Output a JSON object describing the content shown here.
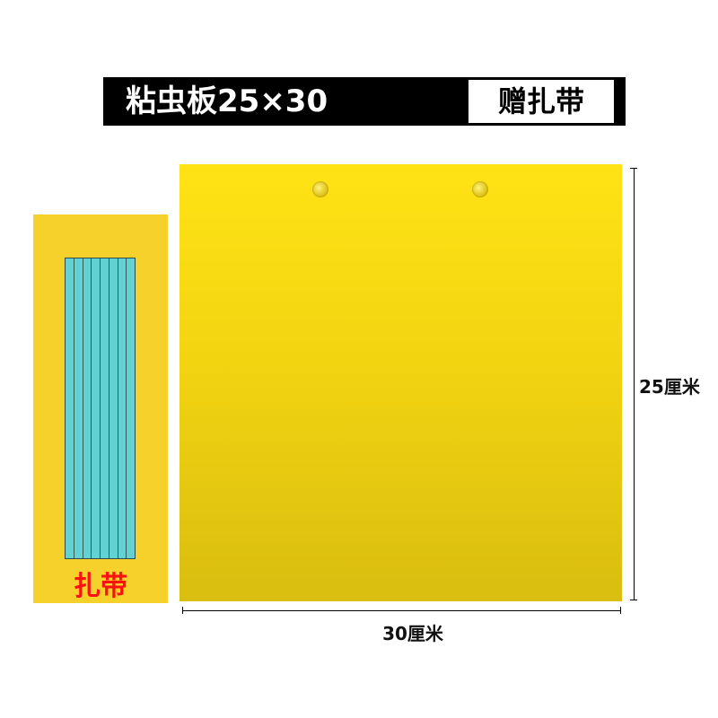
{
  "header": {
    "title": "粘虫板25×30",
    "gift_label": "赠扎带"
  },
  "tie_panel": {
    "label": "扎带",
    "strip_count": 8,
    "strip_color": "#62d1d1",
    "label_color": "#ff1010",
    "background": "#f6d02b"
  },
  "board": {
    "color": "#ffe315",
    "holes": 2,
    "height_label": "25厘米",
    "width_label": "30厘米"
  }
}
